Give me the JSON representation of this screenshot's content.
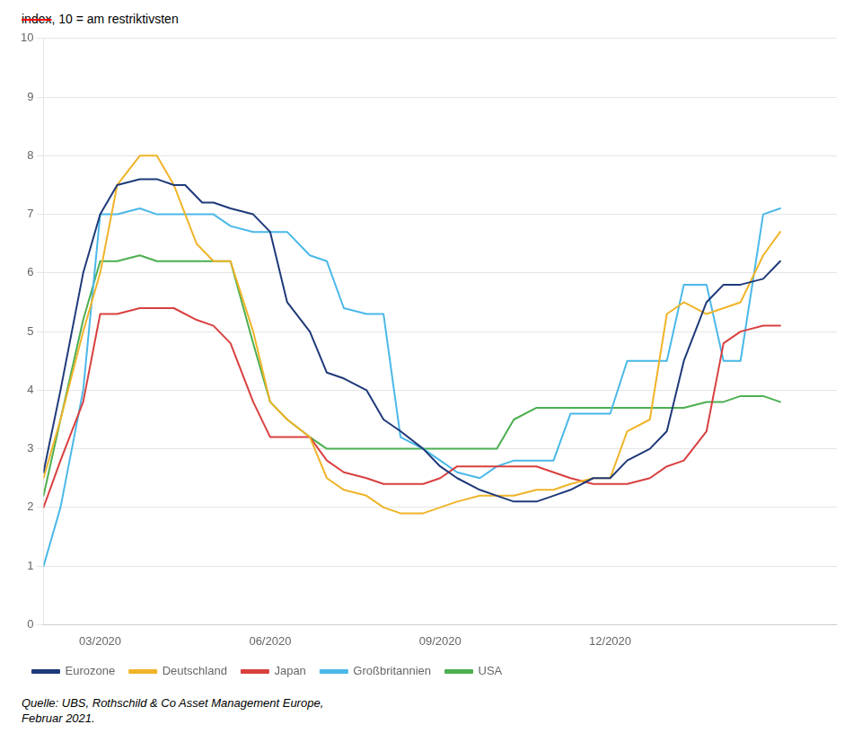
{
  "chart_data": {
    "type": "line",
    "ylabel_struck": "index",
    "ylabel": ", 10 = am restriktivsten",
    "source": "Quelle: UBS, Rothschild & Co Asset Management Europe,\nFebruar 2021.",
    "xlim": [
      0,
      14
    ],
    "xticks": [
      {
        "value": 1,
        "label": "03/2020"
      },
      {
        "value": 4,
        "label": "06/2020"
      },
      {
        "value": 7,
        "label": "09/2020"
      },
      {
        "value": 10,
        "label": "12/2020"
      }
    ],
    "ylim": [
      0,
      10
    ],
    "yticks": [
      0,
      1,
      2,
      3,
      4,
      5,
      6,
      7,
      8,
      9,
      10
    ],
    "grid": "y",
    "legend": "bottom",
    "series": [
      {
        "name": "Eurozone",
        "color": "#1f3a7a",
        "x": [
          0.0,
          0.3,
          0.7,
          1.0,
          1.3,
          1.7,
          2.0,
          2.3,
          2.5,
          2.8,
          3.0,
          3.3,
          3.7,
          4.0,
          4.3,
          4.7,
          5.0,
          5.3,
          5.7,
          6.0,
          6.3,
          6.7,
          7.0,
          7.3,
          7.7,
          8.0,
          8.3,
          8.7,
          9.0,
          9.3,
          9.7,
          10.0,
          10.3,
          10.7,
          11.0,
          11.3,
          11.7,
          12.0,
          12.3,
          12.7,
          13.0
        ],
        "values": [
          2.6,
          4.0,
          6.0,
          7.0,
          7.5,
          7.6,
          7.6,
          7.5,
          7.5,
          7.2,
          7.2,
          7.1,
          7.0,
          6.7,
          5.5,
          5.0,
          4.3,
          4.2,
          4.0,
          3.5,
          3.3,
          3.0,
          2.7,
          2.5,
          2.3,
          2.2,
          2.1,
          2.1,
          2.2,
          2.3,
          2.5,
          2.5,
          2.8,
          3.0,
          3.3,
          4.5,
          5.5,
          5.8,
          5.8,
          5.9,
          6.2
        ]
      },
      {
        "name": "Deutschland",
        "color": "#f0b429",
        "x": [
          0.0,
          0.3,
          0.7,
          1.0,
          1.3,
          1.7,
          2.0,
          2.3,
          2.7,
          3.0,
          3.3,
          3.7,
          4.0,
          4.3,
          4.7,
          5.0,
          5.3,
          5.7,
          6.0,
          6.3,
          6.7,
          7.0,
          7.3,
          7.7,
          8.0,
          8.3,
          8.7,
          9.0,
          9.3,
          9.7,
          10.0,
          10.3,
          10.7,
          11.0,
          11.3,
          11.7,
          12.0,
          12.3,
          12.7,
          13.0
        ],
        "values": [
          2.5,
          3.5,
          5.0,
          6.0,
          7.5,
          8.0,
          8.0,
          7.5,
          6.5,
          6.2,
          6.2,
          5.0,
          3.8,
          3.5,
          3.2,
          2.5,
          2.3,
          2.2,
          2.0,
          1.9,
          1.9,
          2.0,
          2.1,
          2.2,
          2.2,
          2.2,
          2.3,
          2.3,
          2.4,
          2.5,
          2.5,
          3.3,
          3.5,
          5.3,
          5.5,
          5.3,
          5.4,
          5.5,
          6.3,
          6.7
        ]
      },
      {
        "name": "Japan",
        "color": "#d94040",
        "x": [
          0.0,
          0.3,
          0.7,
          1.0,
          1.3,
          1.7,
          2.0,
          2.3,
          2.7,
          3.0,
          3.3,
          3.7,
          4.0,
          4.3,
          4.7,
          5.0,
          5.3,
          5.7,
          6.0,
          6.3,
          6.7,
          7.0,
          7.3,
          7.7,
          8.0,
          8.3,
          8.7,
          9.0,
          9.3,
          9.7,
          10.0,
          10.3,
          10.7,
          11.0,
          11.3,
          11.7,
          12.0,
          12.3,
          12.7,
          13.0
        ],
        "values": [
          2.0,
          2.8,
          3.8,
          5.3,
          5.3,
          5.4,
          5.4,
          5.4,
          5.2,
          5.1,
          4.8,
          3.8,
          3.2,
          3.2,
          3.2,
          2.8,
          2.6,
          2.5,
          2.4,
          2.4,
          2.4,
          2.5,
          2.7,
          2.7,
          2.7,
          2.7,
          2.7,
          2.6,
          2.5,
          2.4,
          2.4,
          2.4,
          2.5,
          2.7,
          2.8,
          3.3,
          4.8,
          5.0,
          5.1,
          5.1
        ]
      },
      {
        "name": "Großbritannien",
        "color": "#4ab8e8",
        "x": [
          0.0,
          0.3,
          0.7,
          1.0,
          1.3,
          1.7,
          2.0,
          2.3,
          2.7,
          3.0,
          3.3,
          3.7,
          4.0,
          4.3,
          4.7,
          5.0,
          5.3,
          5.7,
          6.0,
          6.3,
          6.7,
          7.0,
          7.3,
          7.7,
          8.0,
          8.3,
          8.7,
          9.0,
          9.3,
          9.7,
          10.0,
          10.3,
          10.7,
          11.0,
          11.3,
          11.7,
          12.0,
          12.3,
          12.7,
          13.0
        ],
        "values": [
          1.0,
          2.0,
          4.0,
          7.0,
          7.0,
          7.1,
          7.0,
          7.0,
          7.0,
          7.0,
          6.8,
          6.7,
          6.7,
          6.7,
          6.3,
          6.2,
          5.4,
          5.3,
          5.3,
          3.2,
          3.0,
          2.8,
          2.6,
          2.5,
          2.7,
          2.8,
          2.8,
          2.8,
          3.6,
          3.6,
          3.6,
          4.5,
          4.5,
          4.5,
          5.8,
          5.8,
          4.5,
          4.5,
          7.0,
          7.1
        ]
      },
      {
        "name": "USA",
        "color": "#4caf50",
        "x": [
          0.0,
          0.3,
          0.7,
          1.0,
          1.3,
          1.7,
          2.0,
          2.3,
          2.7,
          3.0,
          3.3,
          3.7,
          4.0,
          4.3,
          4.7,
          5.0,
          5.3,
          5.7,
          6.0,
          6.3,
          6.7,
          7.0,
          7.3,
          7.7,
          8.0,
          8.3,
          8.7,
          9.0,
          9.3,
          9.7,
          10.0,
          10.3,
          10.7,
          11.0,
          11.3,
          11.7,
          12.0,
          12.3,
          12.7,
          13.0
        ],
        "values": [
          2.2,
          3.5,
          5.2,
          6.2,
          6.2,
          6.3,
          6.2,
          6.2,
          6.2,
          6.2,
          6.2,
          4.8,
          3.8,
          3.5,
          3.2,
          3.0,
          3.0,
          3.0,
          3.0,
          3.0,
          3.0,
          3.0,
          3.0,
          3.0,
          3.0,
          3.5,
          3.7,
          3.7,
          3.7,
          3.7,
          3.7,
          3.7,
          3.7,
          3.7,
          3.7,
          3.8,
          3.8,
          3.9,
          3.9,
          3.8
        ]
      }
    ]
  }
}
